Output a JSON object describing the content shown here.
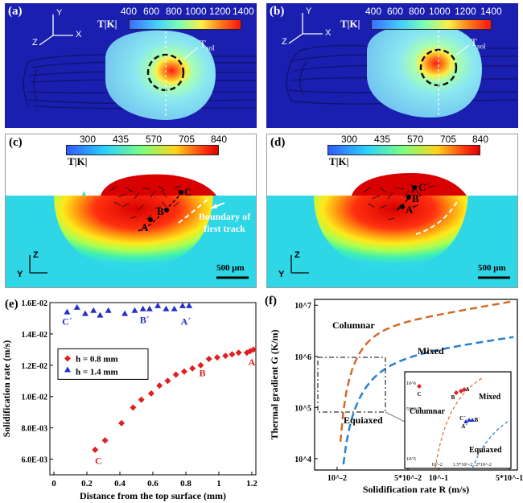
{
  "panels": {
    "a": {
      "label": "(a)",
      "colorbar_unit": "T|K|",
      "ticks": [
        "400",
        "600",
        "800",
        "1000",
        "1200",
        "1400"
      ],
      "tsol_label": "T",
      "tsol_sub": "sol",
      "axis_y": "Y",
      "axis_x": "X",
      "axis_z": "Z"
    },
    "b": {
      "label": "(b)",
      "colorbar_unit": "T|K|",
      "ticks": [
        "400",
        "600",
        "800",
        "1000",
        "1200",
        "1400"
      ],
      "tsol_label": "T",
      "tsol_sub": "sol",
      "axis_y": "Y",
      "axis_x": "X",
      "axis_z": "Z"
    },
    "c": {
      "label": "(c)",
      "colorbar_unit": "T|K|",
      "ticks": [
        "300",
        "435",
        "570",
        "705",
        "840"
      ],
      "points": [
        "A",
        "B",
        "C"
      ],
      "annotation": "Boundary of first track",
      "scale": "500 μm",
      "axis_z": "Z",
      "axis_y": "Y"
    },
    "d": {
      "label": "(d)",
      "colorbar_unit": "T|K|",
      "ticks": [
        "300",
        "435",
        "570",
        "705",
        "840"
      ],
      "points": [
        "A´",
        "B´",
        "C´"
      ],
      "scale": "500 μm",
      "axis_z": "Z",
      "axis_y": "Y"
    }
  },
  "colors": {
    "red_series": "#e02020",
    "blue_series": "#2232c8",
    "field_blue": "#1a1fb0",
    "orange_curve": "#d46a2a",
    "blue_curve": "#2a7fd0"
  },
  "chart_data": [
    {
      "panel": "(e)",
      "type": "scatter",
      "xlabel": "Distance from the top surface (mm)",
      "ylabel": "Solidification rate (m/s)",
      "xlim": [
        0,
        1.2
      ],
      "ylim": [
        0.005,
        0.016
      ],
      "xticks": [
        "0",
        "0.2",
        "0.4",
        "0.6",
        "0.8",
        "1",
        "1.2"
      ],
      "yticks": [
        "6.0E-03",
        "8.0E-03",
        "1.0E-02",
        "1.2E-02",
        "1.4E-02",
        "1.6E-02"
      ],
      "legend": [
        "h = 0.8 mm",
        "h = 1.4 mm"
      ],
      "series": [
        {
          "name": "h = 0.8 mm",
          "x": [
            0.25,
            0.31,
            0.41,
            0.48,
            0.53,
            0.59,
            0.64,
            0.69,
            0.74,
            0.79,
            0.84,
            0.89,
            0.94,
            0.99,
            1.04,
            1.08,
            1.12,
            1.17,
            1.19,
            1.21
          ],
          "y": [
            0.0066,
            0.0072,
            0.0083,
            0.0093,
            0.0098,
            0.0102,
            0.0107,
            0.011,
            0.0114,
            0.0116,
            0.0118,
            0.012,
            0.0124,
            0.0125,
            0.0126,
            0.0127,
            0.0128,
            0.0128,
            0.0129,
            0.013
          ]
        },
        {
          "name": "h = 1.4 mm",
          "x": [
            0.08,
            0.14,
            0.19,
            0.24,
            0.28,
            0.33,
            0.43,
            0.49,
            0.54,
            0.58,
            0.63,
            0.68,
            0.73,
            0.78,
            0.82
          ],
          "y": [
            0.0154,
            0.0157,
            0.0153,
            0.0155,
            0.0152,
            0.0155,
            0.0153,
            0.0155,
            0.0156,
            0.0156,
            0.0158,
            0.0156,
            0.0156,
            0.0158,
            0.0158
          ]
        }
      ],
      "point_labels": [
        {
          "text": "C",
          "x": 0.27,
          "y": 0.0059
        },
        {
          "text": "B",
          "x": 0.9,
          "y": 0.0115
        },
        {
          "text": "A",
          "x": 1.2,
          "y": 0.0122
        },
        {
          "text": "C´",
          "x": 0.08,
          "y": 0.0148
        },
        {
          "text": "B´",
          "x": 0.55,
          "y": 0.0149
        },
        {
          "text": "A´",
          "x": 0.8,
          "y": 0.0148
        }
      ]
    },
    {
      "panel": "(f)",
      "type": "line",
      "xscale": "log",
      "yscale": "log",
      "xlabel": "Solidification rate R (m/s)",
      "ylabel": "Thermal gradient G (K/m)",
      "xticks": [
        "10^-2",
        "5*10^-2",
        "10^-1",
        "5*10^-1"
      ],
      "yticks": [
        "10^4",
        "10^5",
        "10^6",
        "10^7"
      ],
      "regions": [
        "Columnar",
        "Mixed",
        "Equiaxed"
      ],
      "inset": {
        "regions": [
          "Columnar",
          "Mixed",
          "Equiaxed"
        ],
        "xticks": [
          "10^-2",
          "1.5*10^-2",
          "2*10^-2"
        ],
        "yticks": [
          "10^5",
          "5*10^5",
          "10^6"
        ],
        "points": [
          "C",
          "B",
          "A",
          "C´",
          "B´",
          "A´"
        ]
      }
    }
  ]
}
